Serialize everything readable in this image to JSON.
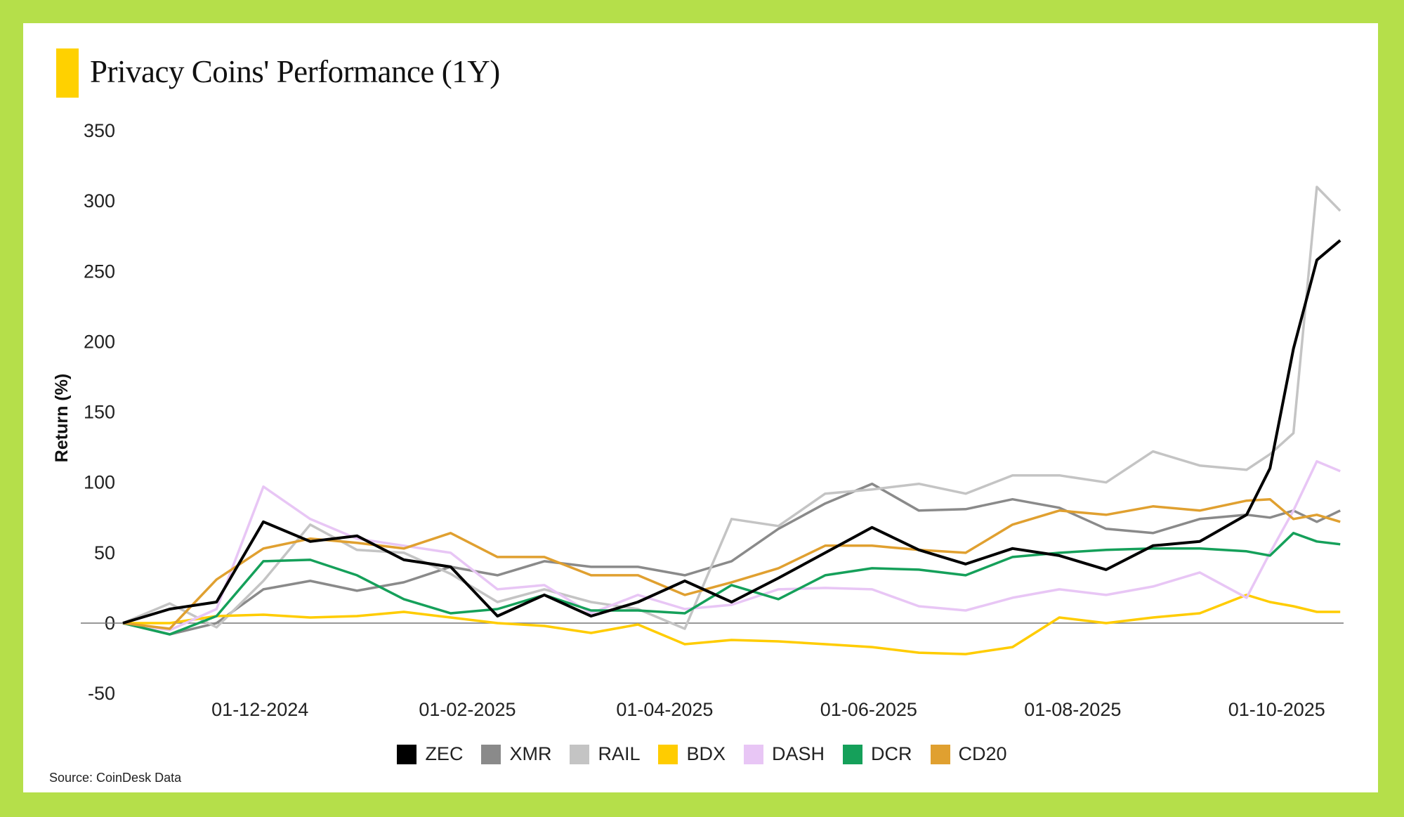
{
  "chart_data": {
    "type": "line",
    "title": "Privacy Coins' Performance (1Y)",
    "title_accent_color": "#ffd100",
    "xlabel": "",
    "ylabel": "Return (%)",
    "ylim": [
      -50,
      350
    ],
    "yticks": [
      -50,
      0,
      50,
      100,
      150,
      200,
      250,
      300,
      350
    ],
    "ytick_labels": [
      "-50",
      "0",
      "50",
      "100",
      "150",
      "200",
      "250",
      "300",
      "350"
    ],
    "xlim": [
      "2024-10-21",
      "2025-10-21"
    ],
    "xticks": [
      "2024-12-01",
      "2025-02-01",
      "2025-04-01",
      "2025-06-01",
      "2025-08-01",
      "2025-10-01"
    ],
    "xtick_labels": [
      "01-12-2024",
      "01-02-2025",
      "01-04-2025",
      "01-06-2025",
      "01-08-2025",
      "01-10-2025"
    ],
    "grid": false,
    "legend_position": "bottom",
    "x": [
      "2024-10-21",
      "2024-11-04",
      "2024-11-18",
      "2024-12-02",
      "2024-12-16",
      "2024-12-30",
      "2025-01-13",
      "2025-01-27",
      "2025-02-10",
      "2025-02-24",
      "2025-03-10",
      "2025-03-24",
      "2025-04-07",
      "2025-04-21",
      "2025-05-05",
      "2025-05-19",
      "2025-06-02",
      "2025-06-16",
      "2025-06-30",
      "2025-07-14",
      "2025-07-28",
      "2025-08-11",
      "2025-08-25",
      "2025-09-08",
      "2025-09-22",
      "2025-09-29",
      "2025-10-06",
      "2025-10-13",
      "2025-10-20"
    ],
    "series": [
      {
        "name": "ZEC",
        "color": "#000000",
        "values": [
          0,
          10,
          15,
          72,
          58,
          62,
          45,
          40,
          5,
          20,
          5,
          15,
          30,
          15,
          32,
          50,
          68,
          52,
          42,
          53,
          48,
          38,
          55,
          58,
          77,
          110,
          195,
          258,
          272
        ]
      },
      {
        "name": "XMR",
        "color": "#8a8a8a",
        "values": [
          0,
          -8,
          0,
          24,
          30,
          23,
          29,
          40,
          34,
          44,
          40,
          40,
          34,
          44,
          67,
          85,
          99,
          80,
          81,
          88,
          82,
          67,
          64,
          74,
          77,
          75,
          80,
          72,
          80
        ]
      },
      {
        "name": "RAIL",
        "color": "#c4c4c4",
        "values": [
          0,
          14,
          -3,
          30,
          70,
          52,
          50,
          35,
          15,
          24,
          15,
          10,
          -4,
          74,
          69,
          92,
          95,
          99,
          92,
          105,
          105,
          100,
          122,
          112,
          109,
          120,
          135,
          310,
          293
        ]
      },
      {
        "name": "BDX",
        "color": "#ffcc00",
        "values": [
          0,
          0,
          5,
          6,
          4,
          5,
          8,
          4,
          0,
          -2,
          -7,
          -1,
          -15,
          -12,
          -13,
          -15,
          -17,
          -21,
          -22,
          -17,
          4,
          0,
          4,
          7,
          20,
          15,
          12,
          8,
          8
        ]
      },
      {
        "name": "DASH",
        "color": "#e8c6f5",
        "values": [
          0,
          -5,
          10,
          97,
          74,
          60,
          55,
          50,
          24,
          27,
          7,
          20,
          10,
          13,
          24,
          25,
          24,
          12,
          9,
          18,
          24,
          20,
          26,
          36,
          18,
          50,
          80,
          115,
          108
        ]
      },
      {
        "name": "DCR",
        "color": "#15a05a",
        "values": [
          0,
          -8,
          5,
          44,
          45,
          34,
          17,
          7,
          10,
          20,
          9,
          9,
          7,
          27,
          17,
          34,
          39,
          38,
          34,
          47,
          50,
          52,
          53,
          53,
          51,
          48,
          64,
          58,
          56
        ]
      },
      {
        "name": "CD20",
        "color": "#e0a030",
        "values": [
          0,
          -4,
          31,
          53,
          60,
          57,
          53,
          64,
          47,
          47,
          34,
          34,
          20,
          29,
          39,
          55,
          55,
          52,
          50,
          70,
          80,
          77,
          83,
          80,
          87,
          88,
          74,
          77,
          72
        ]
      }
    ]
  },
  "source": "Source: CoinDesk Data"
}
